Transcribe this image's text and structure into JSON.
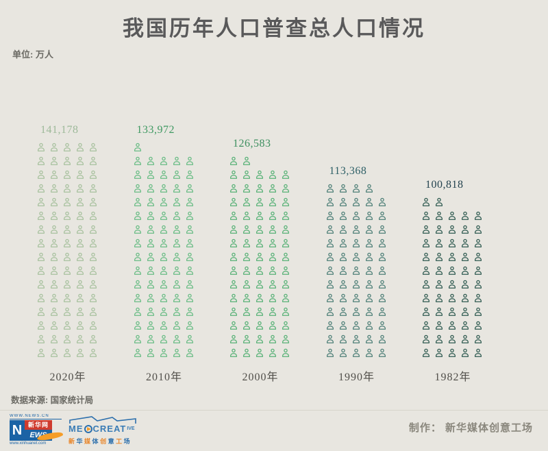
{
  "title": "我国历年人口普查总人口情况",
  "unit_label": "单位: 万人",
  "source_label": "数据来源: 国家统计局",
  "chart_data": {
    "type": "bar",
    "style": "pictogram-isotype",
    "title": "我国历年人口普查总人口情况",
    "unit": "万人",
    "icon": "person-icon",
    "icons_per_row": 5,
    "approx_value_per_icon": 1765,
    "categories": [
      "2020年",
      "2010年",
      "2000年",
      "1990年",
      "1982年"
    ],
    "values": [
      141178,
      133972,
      126583,
      113368,
      100818
    ],
    "value_labels": [
      "141,178",
      "133,972",
      "126,583",
      "113,368",
      "100,818"
    ],
    "icon_counts": [
      80,
      76,
      72,
      64,
      57
    ],
    "icon_colors": [
      "#a7c19e",
      "#68bc84",
      "#57b176",
      "#4d7f77",
      "#2e5a50"
    ],
    "label_colors": [
      "#9db999",
      "#3f9962",
      "#3d8f5f",
      "#2d5f66",
      "#1f3f4c"
    ],
    "legend_position": "none",
    "grid": false
  },
  "footer": {
    "credit": "制作： 新华媒体创意工场",
    "logo_xinhua": {
      "url_top": "WWW.NEWS.CN",
      "n": "N",
      "name": "新华网",
      "ews": "EWS",
      "url_bottom": "www.xinhuanet.com"
    },
    "logo_mediacreate": {
      "en_prefix": "ME",
      "en_main": "CREAT",
      "en_suffix": "IVE",
      "cn": "新华媒体创意工场"
    }
  }
}
